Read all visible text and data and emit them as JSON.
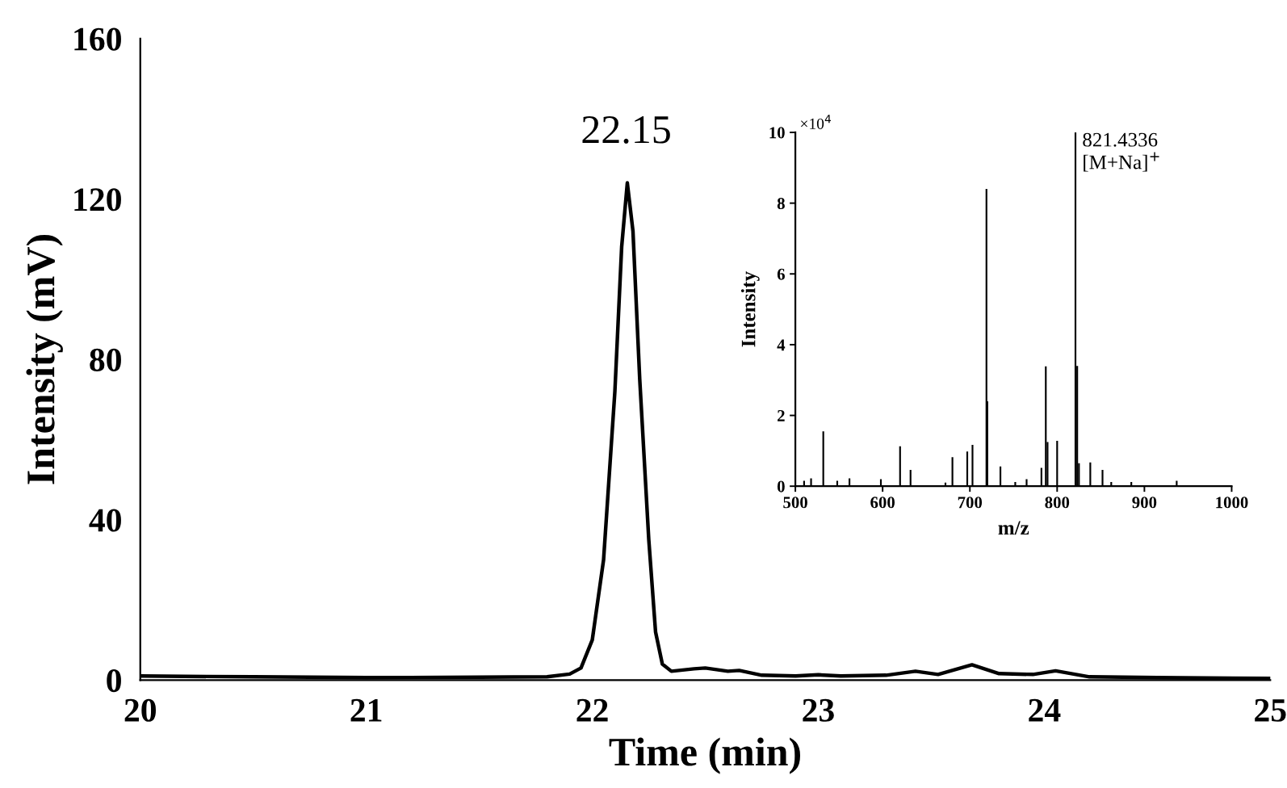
{
  "chart_data": [
    {
      "type": "line",
      "xlabel": "Time (min)",
      "ylabel": "Intensity (mV)",
      "xlim": [
        20,
        25
      ],
      "xticks": [
        20,
        21,
        22,
        23,
        24,
        25
      ],
      "ylim": [
        0,
        160
      ],
      "yticks": [
        0,
        40,
        80,
        120,
        160
      ],
      "grid": false,
      "legend": false,
      "marker": "none",
      "line_style": "solid",
      "annotations": [
        {
          "text": "22.15",
          "x": 22.15,
          "y": 124
        }
      ],
      "series": [
        {
          "color": "#000000",
          "x": [
            20,
            20.5,
            21,
            21.5,
            21.8,
            21.9,
            21.95,
            22.0,
            22.05,
            22.1,
            22.13,
            22.155,
            22.18,
            22.21,
            22.25,
            22.28,
            22.31,
            22.35,
            22.45,
            22.5,
            22.6,
            22.65,
            22.75,
            22.9,
            23.0,
            23.1,
            23.3,
            23.43,
            23.53,
            23.68,
            23.8,
            23.95,
            24.05,
            24.2,
            24.5,
            25
          ],
          "values": [
            1.0,
            0.8,
            0.6,
            0.7,
            0.8,
            1.5,
            3,
            10,
            30,
            72,
            108,
            124,
            112,
            75,
            35,
            12,
            4,
            2.2,
            2.8,
            3,
            2.2,
            2.4,
            1.2,
            1.0,
            1.3,
            1.0,
            1.2,
            2.2,
            1.4,
            3.8,
            1.6,
            1.4,
            2.3,
            0.8,
            0.6,
            0.4
          ]
        }
      ]
    },
    {
      "type": "bar",
      "xlabel": "m/z",
      "ylabel": "Intensity",
      "xlim": [
        500,
        1000
      ],
      "xticks": [
        500,
        600,
        700,
        800,
        900,
        1000
      ],
      "ylim": [
        0,
        10
      ],
      "yticks": [
        0,
        2,
        4,
        6,
        8,
        10
      ],
      "grid": false,
      "legend": false,
      "annotations": [
        "×10$^{4}$",
        {
          "text": "821.4336\n[M+Na]$^{+}$",
          "x": 821,
          "y": 10
        }
      ],
      "series": [
        {
          "color": "#000000",
          "x": [
            510,
            518,
            532,
            548,
            562,
            598,
            620,
            632,
            672,
            680,
            697,
            703,
            719,
            720,
            735,
            752,
            765,
            782,
            787,
            789,
            800,
            821,
            823,
            825,
            838,
            852,
            862,
            885,
            937
          ],
          "values": [
            0.15,
            0.22,
            1.55,
            0.15,
            0.22,
            0.2,
            1.13,
            0.46,
            0.1,
            0.82,
            0.98,
            1.17,
            8.4,
            2.4,
            0.56,
            0.12,
            0.2,
            0.52,
            3.39,
            1.25,
            1.28,
            10,
            3.4,
            0.65,
            0.67,
            0.46,
            0.12,
            0.12,
            0.15
          ]
        }
      ]
    }
  ]
}
